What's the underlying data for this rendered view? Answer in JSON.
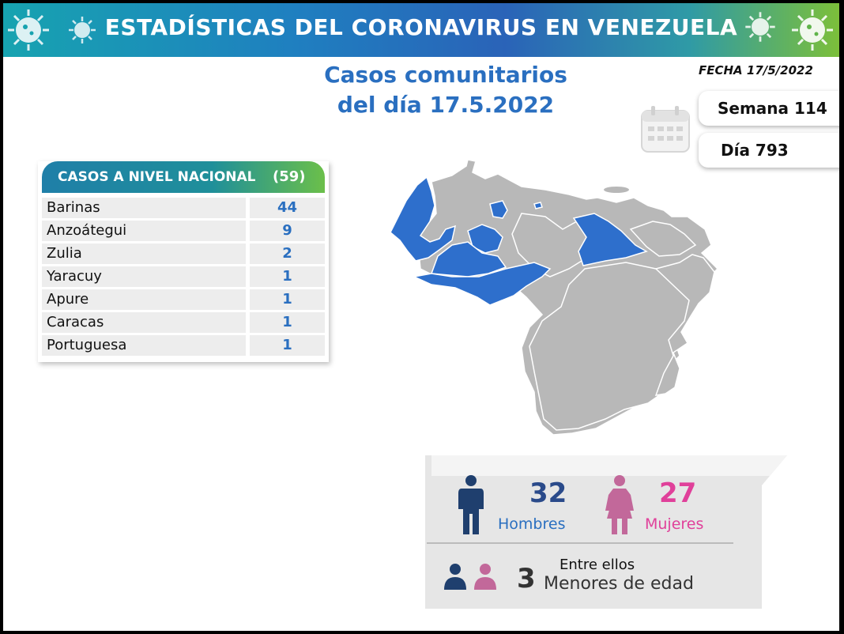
{
  "banner": {
    "title": "ESTADÍSTICAS DEL CORONAVIRUS EN VENEZUELA"
  },
  "header": {
    "subtitle_line1": "Casos comunitarios",
    "subtitle_line2": "del día 17.5.2022",
    "fecha": "FECHA 17/5/2022",
    "semana": "Semana 114",
    "dia": "Día 793"
  },
  "table": {
    "header_label": "CASOS A NIVEL NACIONAL",
    "header_count": "(59)",
    "rows": [
      {
        "name": "Barinas",
        "value": "44"
      },
      {
        "name": "Anzoátegui",
        "value": "9"
      },
      {
        "name": "Zulia",
        "value": "2"
      },
      {
        "name": "Yaracuy",
        "value": "1"
      },
      {
        "name": "Apure",
        "value": "1"
      },
      {
        "name": "Caracas",
        "value": "1"
      },
      {
        "name": "Portuguesa",
        "value": "1"
      }
    ]
  },
  "map": {
    "highlight_color": "#2e6fcc",
    "base_color": "#b8b8b8",
    "highlighted_states": [
      "Zulia",
      "Yaracuy",
      "Portuguesa",
      "Barinas",
      "Apure",
      "Anzoátegui",
      "Caracas"
    ]
  },
  "stats": {
    "men_count": "32",
    "men_label": "Hombres",
    "women_count": "27",
    "women_label": "Mujeres",
    "minors_line1": "Entre ellos",
    "minors_count": "3",
    "minors_line2": "Menores de edad",
    "men_color": "#1f3f6e",
    "women_color": "#c2689a"
  }
}
